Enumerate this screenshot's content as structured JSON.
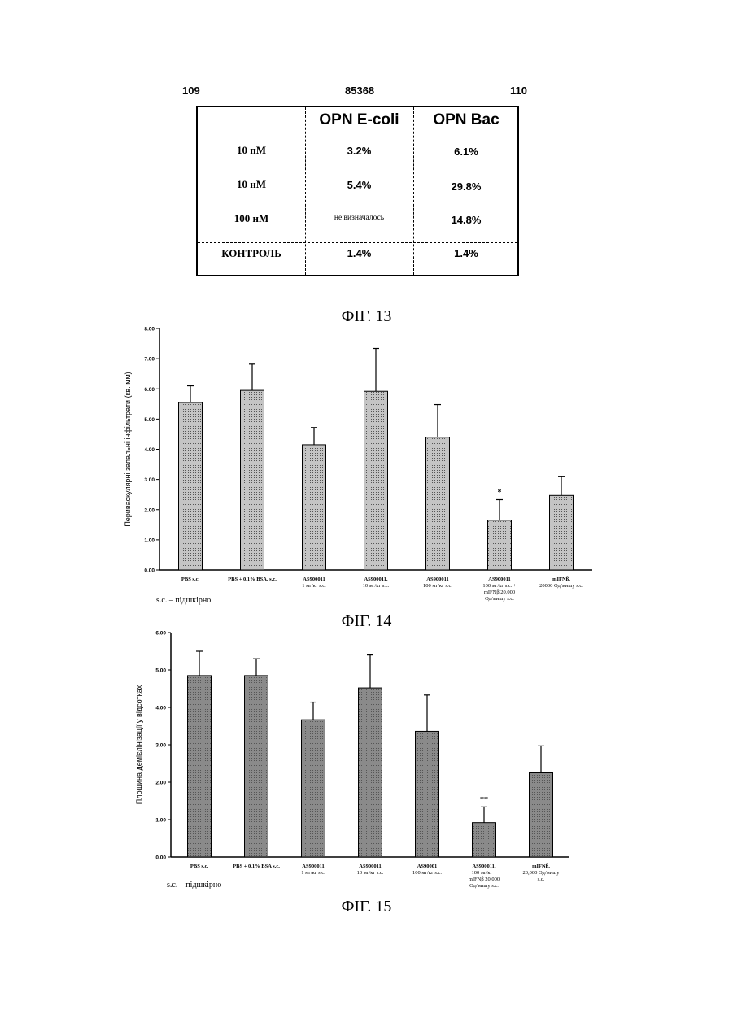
{
  "header": {
    "left": "109",
    "center": "85368",
    "right": "110"
  },
  "table": {
    "columns": [
      "OPN E-coli",
      "OPN Bac"
    ],
    "rows": [
      {
        "label": "10 пМ",
        "values": [
          "3.2%",
          "6.1%"
        ]
      },
      {
        "label": "10 нМ",
        "values": [
          "5.4%",
          "29.8%"
        ]
      },
      {
        "label": "100 нМ",
        "values": [
          "не визначалось",
          "14.8%"
        ]
      },
      {
        "label": "КОНТРОЛЬ",
        "values": [
          "1.4%",
          "1.4%"
        ]
      }
    ]
  },
  "captions": {
    "fig13": "ФІГ. 13",
    "fig14": "ФІГ. 14",
    "fig15": "ФІГ. 15"
  },
  "notes": {
    "fig14": "s.c. – підшкірно",
    "fig15": "s.c. – підшкірно"
  },
  "chart_data": [
    {
      "type": "bar",
      "ylabel": "Периваскулярні запальні інфільтрати (кв. мм)",
      "ylim": [
        0,
        8
      ],
      "yticks": [
        "0.00",
        "1.00",
        "2.00",
        "3.00",
        "4.00",
        "5.00",
        "6.00",
        "7.00",
        "8.00"
      ],
      "categories": [
        [
          "PBS s.c."
        ],
        [
          "PBS + 0.1% BSA, s.c."
        ],
        [
          "AS900011",
          "1 мг/кг s.c."
        ],
        [
          "AS900011,",
          "10 мг/кг s.c."
        ],
        [
          "AS900011",
          "100 мг/кг s.c."
        ],
        [
          "AS900011",
          "100 мг/кг s.c. +",
          "mIFNβ 20,000",
          "Од/мишу s.c."
        ],
        [
          "mIFNß,",
          "20000 Од/мишу s.c."
        ]
      ],
      "values": [
        5.55,
        5.95,
        4.15,
        5.92,
        4.4,
        1.65,
        2.47
      ],
      "errors": [
        0.55,
        0.87,
        0.57,
        1.42,
        1.08,
        0.68,
        0.62
      ],
      "annotations": [
        "",
        "",
        "",
        "",
        "",
        "*",
        ""
      ],
      "bar_color": "#c4c4c4"
    },
    {
      "type": "bar",
      "ylabel": "Площина демієлінізації у відсотках",
      "ylim": [
        0,
        6
      ],
      "yticks": [
        "0.00",
        "1.00",
        "2.00",
        "3.00",
        "4.00",
        "5.00",
        "6.00"
      ],
      "categories": [
        [
          "PBS s.c."
        ],
        [
          "PBS + 0.1% BSA s.c."
        ],
        [
          "AS900011",
          "1 мг/кг s.c."
        ],
        [
          "AS900011",
          "10 мг/кг s.c."
        ],
        [
          "AS90001",
          "100 мг/кг s.c."
        ],
        [
          "AS900011,",
          "100 мг/кг +",
          "mIFNβ 20,000",
          "Од/мишу s.c."
        ],
        [
          "mIFNß,",
          "20,000 Од/мишу",
          "s.c."
        ]
      ],
      "values": [
        4.85,
        4.85,
        3.67,
        4.52,
        3.36,
        0.92,
        2.25
      ],
      "errors": [
        0.65,
        0.45,
        0.47,
        0.88,
        0.97,
        0.42,
        0.72
      ],
      "annotations": [
        "",
        "",
        "",
        "",
        "",
        "**",
        ""
      ],
      "bar_color": "#8a8a8a"
    }
  ]
}
